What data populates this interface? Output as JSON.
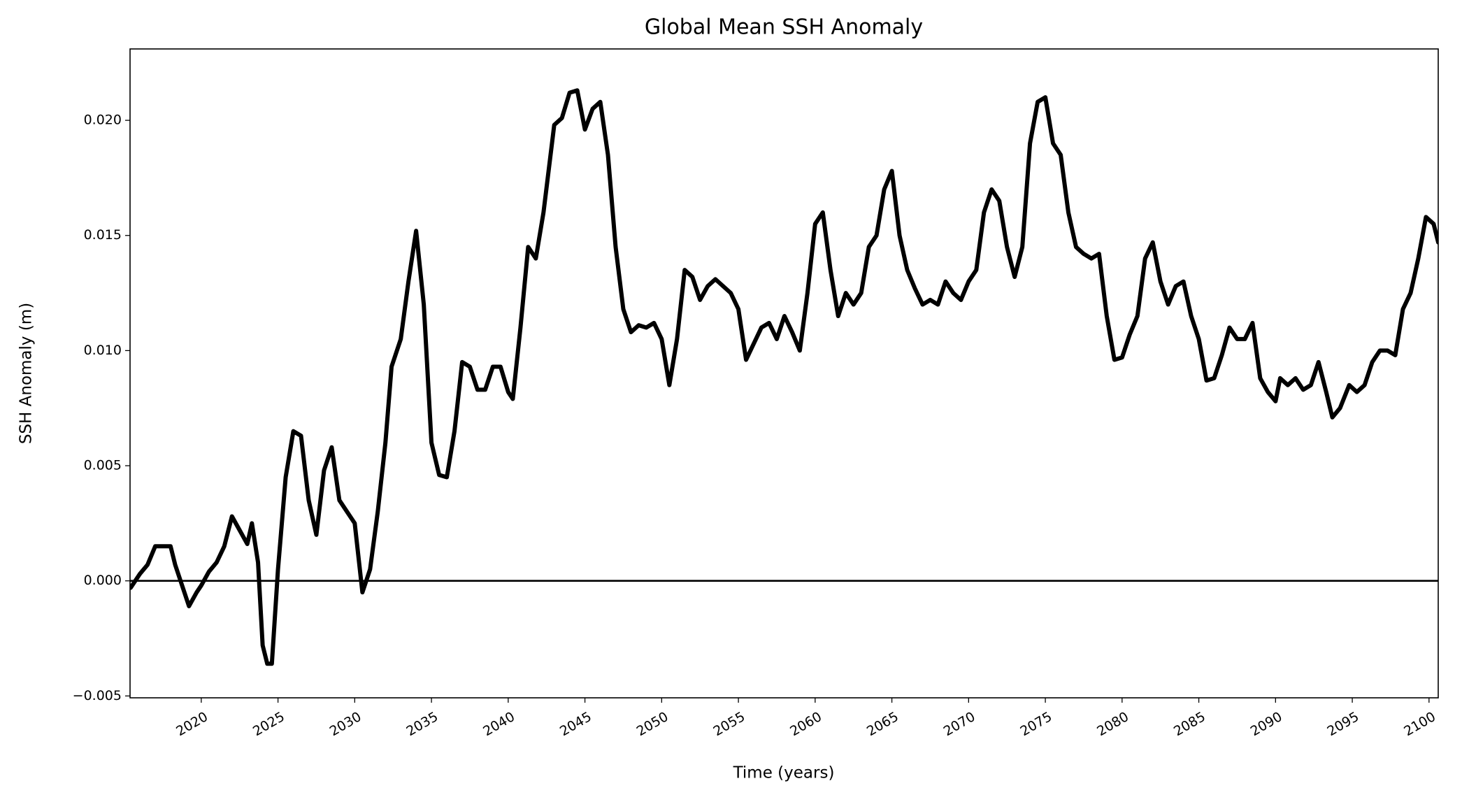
{
  "chart_data": {
    "type": "line",
    "title": "Global Mean SSH Anomaly",
    "xlabel": "Time (years)",
    "ylabel": "SSH Anomaly (m)",
    "color": "#000000",
    "axhline": 0,
    "xlim": [
      2015.36,
      2100.6
    ],
    "ylim": [
      -0.00508,
      0.0231
    ],
    "xticks": [
      2020,
      2025,
      2030,
      2035,
      2040,
      2045,
      2050,
      2055,
      2060,
      2065,
      2070,
      2075,
      2080,
      2085,
      2090,
      2095,
      2100
    ],
    "yticks": [
      {
        "value": -0.005,
        "label": "−0.005"
      },
      {
        "value": 0,
        "label": "0.000"
      },
      {
        "value": 0.005,
        "label": "0.005"
      },
      {
        "value": 0.01,
        "label": "0.010"
      },
      {
        "value": 0.015,
        "label": "0.015"
      },
      {
        "value": 0.02,
        "label": "0.020"
      }
    ],
    "x": [
      2015.4,
      2016,
      2016.5,
      2017,
      2017.5,
      2018,
      2018.3,
      2018.8,
      2019.2,
      2019.7,
      2020,
      2020.5,
      2021,
      2021.5,
      2022,
      2022.5,
      2023,
      2023.3,
      2023.7,
      2024,
      2024.3,
      2024.6,
      2025,
      2025.5,
      2026,
      2026.5,
      2027,
      2027.5,
      2028,
      2028.5,
      2029,
      2029.5,
      2030,
      2030.5,
      2031,
      2031.5,
      2032,
      2032.4,
      2033,
      2033.5,
      2034,
      2034.5,
      2035,
      2035.5,
      2036,
      2036.5,
      2037,
      2037.5,
      2038,
      2038.5,
      2039,
      2039.5,
      2040,
      2040.3,
      2040.8,
      2041.3,
      2041.8,
      2042.3,
      2043,
      2043.5,
      2044,
      2044.5,
      2045,
      2045.5,
      2046,
      2046.5,
      2047,
      2047.5,
      2048,
      2048.5,
      2049,
      2049.5,
      2050,
      2050.5,
      2051,
      2051.5,
      2052,
      2052.5,
      2053,
      2053.5,
      2054,
      2054.5,
      2055,
      2055.5,
      2056,
      2056.5,
      2057,
      2057.5,
      2058,
      2058.5,
      2059,
      2059.5,
      2060,
      2060.5,
      2061,
      2061.5,
      2062,
      2062.5,
      2063,
      2063.5,
      2064,
      2064.5,
      2065,
      2065.5,
      2066,
      2066.5,
      2067,
      2067.5,
      2068,
      2068.5,
      2069,
      2069.5,
      2070,
      2070.5,
      2071,
      2071.5,
      2072,
      2072.5,
      2073,
      2073.5,
      2074,
      2074.5,
      2075,
      2075.5,
      2076,
      2076.5,
      2077,
      2077.5,
      2078,
      2078.5,
      2079,
      2079.5,
      2080,
      2080.5,
      2081,
      2081.5,
      2082,
      2082.5,
      2083,
      2083.5,
      2084,
      2084.5,
      2085,
      2085.5,
      2086,
      2086.5,
      2087,
      2087.5,
      2088,
      2088.5,
      2089,
      2089.5,
      2090,
      2090.3,
      2090.8,
      2091.3,
      2091.8,
      2092.3,
      2092.8,
      2093.3,
      2093.7,
      2094.2,
      2094.8,
      2095.3,
      2095.8,
      2096.3,
      2096.8,
      2097.3,
      2097.8,
      2098.3,
      2098.8,
      2099.3,
      2099.8,
      2100.3,
      2100.6
    ],
    "values": [
      -0.0003,
      0.0003,
      0.0007,
      0.0015,
      0.0015,
      0.0015,
      0.0007,
      -0.0003,
      -0.0011,
      -0.0005,
      -0.0002,
      0.0004,
      0.0008,
      0.0015,
      0.0028,
      0.0022,
      0.0016,
      0.0025,
      0.0008,
      -0.0028,
      -0.0036,
      -0.0036,
      0.0005,
      0.0045,
      0.0065,
      0.0063,
      0.0035,
      0.002,
      0.0048,
      0.0058,
      0.0035,
      0.003,
      0.0025,
      -0.0005,
      0.0005,
      0.003,
      0.006,
      0.0093,
      0.0105,
      0.013,
      0.0152,
      0.012,
      0.006,
      0.0046,
      0.0045,
      0.0065,
      0.0095,
      0.0093,
      0.0083,
      0.0083,
      0.0093,
      0.0093,
      0.0082,
      0.0079,
      0.011,
      0.0145,
      0.014,
      0.016,
      0.0198,
      0.0201,
      0.0212,
      0.0213,
      0.0196,
      0.0205,
      0.0208,
      0.0185,
      0.0145,
      0.0118,
      0.0108,
      0.0111,
      0.011,
      0.0112,
      0.0105,
      0.0085,
      0.0105,
      0.0135,
      0.0132,
      0.0122,
      0.0128,
      0.0131,
      0.0128,
      0.0125,
      0.0118,
      0.0096,
      0.0103,
      0.011,
      0.0112,
      0.0105,
      0.0115,
      0.0108,
      0.01,
      0.0125,
      0.0155,
      0.016,
      0.0135,
      0.0115,
      0.0125,
      0.012,
      0.0125,
      0.0145,
      0.015,
      0.017,
      0.0178,
      0.015,
      0.0135,
      0.0127,
      0.012,
      0.0122,
      0.012,
      0.013,
      0.0125,
      0.0122,
      0.013,
      0.0135,
      0.016,
      0.017,
      0.0165,
      0.0145,
      0.0132,
      0.0145,
      0.019,
      0.0208,
      0.021,
      0.019,
      0.0185,
      0.016,
      0.0145,
      0.0142,
      0.014,
      0.0142,
      0.0115,
      0.0096,
      0.0097,
      0.0107,
      0.0115,
      0.014,
      0.0147,
      0.013,
      0.012,
      0.0128,
      0.013,
      0.0115,
      0.0105,
      0.0087,
      0.0088,
      0.0098,
      0.011,
      0.0105,
      0.0105,
      0.0112,
      0.0088,
      0.0082,
      0.0078,
      0.0088,
      0.0085,
      0.0088,
      0.0083,
      0.0085,
      0.0095,
      0.0082,
      0.0071,
      0.0075,
      0.0085,
      0.0082,
      0.0085,
      0.0095,
      0.01,
      0.01,
      0.0098,
      0.0118,
      0.0125,
      0.014,
      0.0158,
      0.0155,
      0.0147
    ]
  }
}
